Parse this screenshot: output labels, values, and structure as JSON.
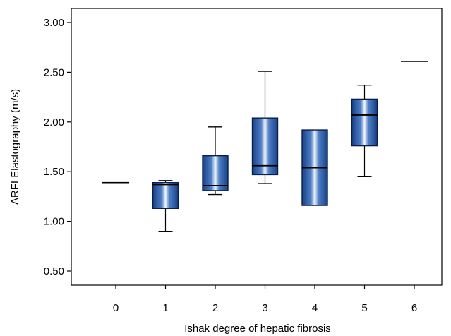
{
  "chart_data": {
    "type": "box",
    "xlabel": "Ishak degree of hepatic fibrosis",
    "ylabel": "ARFI Elastography (m/s)",
    "ylim": [
      0.35,
      3.1
    ],
    "yticks": [
      "0.50",
      "1.00",
      "1.50",
      "2.00",
      "2.50",
      "3.00"
    ],
    "ytick_values": [
      0.5,
      1.0,
      1.5,
      2.0,
      2.5,
      3.0
    ],
    "categories": [
      "0",
      "1",
      "2",
      "3",
      "4",
      "5",
      "6"
    ],
    "boxes": [
      {
        "category": "0",
        "min": 1.39,
        "q1": 1.39,
        "median": 1.39,
        "q3": 1.39,
        "max": 1.39
      },
      {
        "category": "1",
        "min": 0.9,
        "q1": 1.13,
        "median": 1.37,
        "q3": 1.39,
        "max": 1.41
      },
      {
        "category": "2",
        "min": 1.27,
        "q1": 1.31,
        "median": 1.36,
        "q3": 1.66,
        "max": 1.95
      },
      {
        "category": "3",
        "min": 1.38,
        "q1": 1.47,
        "median": 1.56,
        "q3": 2.04,
        "max": 2.51
      },
      {
        "category": "4",
        "min": 1.16,
        "q1": 1.16,
        "median": 1.54,
        "q3": 1.92,
        "max": 1.92
      },
      {
        "category": "5",
        "min": 1.45,
        "q1": 1.76,
        "median": 2.07,
        "q3": 2.23,
        "max": 2.37
      },
      {
        "category": "6",
        "min": 2.61,
        "q1": 2.61,
        "median": 2.61,
        "q3": 2.61,
        "max": 2.61
      }
    ],
    "box_color": "#1e4e9a",
    "grid": false,
    "legend": "none"
  }
}
